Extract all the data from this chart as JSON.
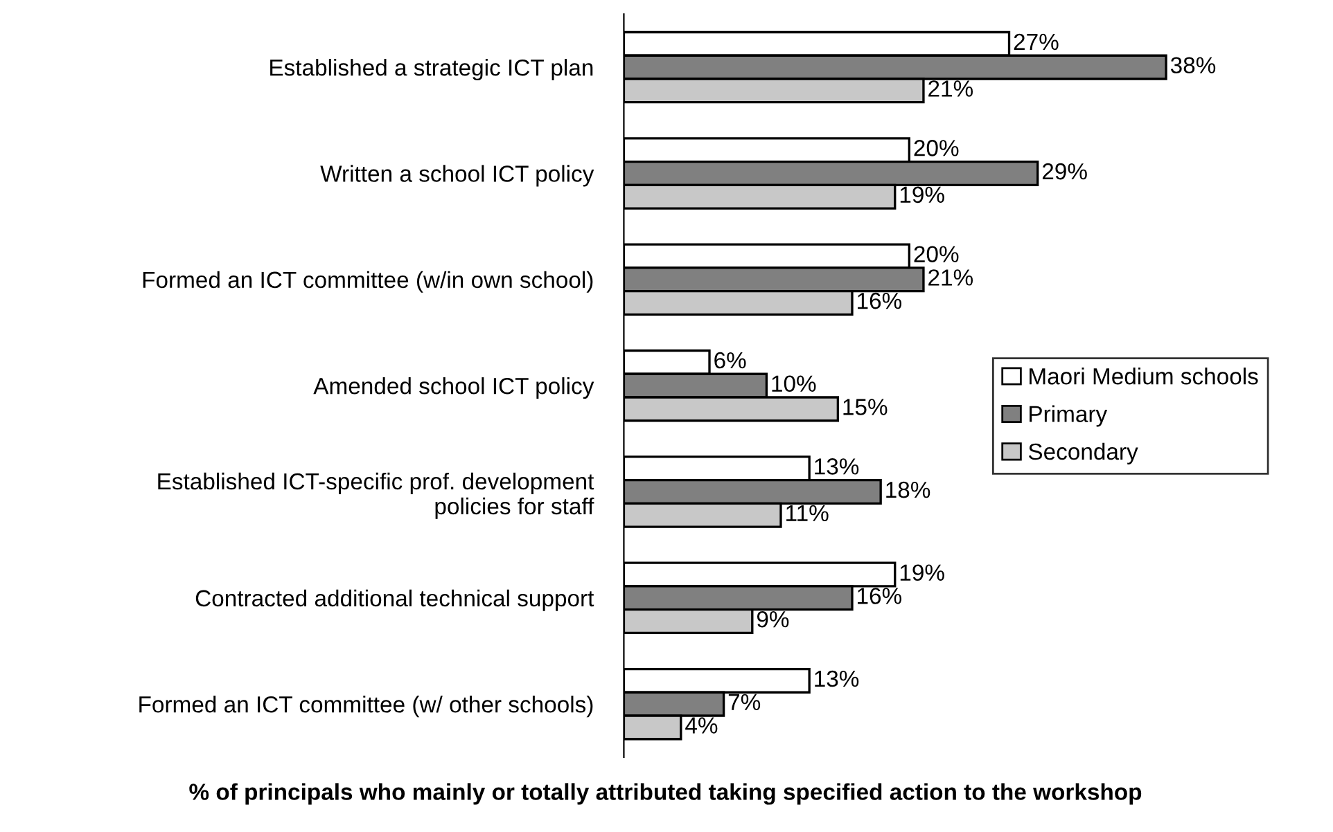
{
  "chart_data": {
    "type": "bar",
    "orientation": "horizontal",
    "xlabel": "% of principals who mainly or totally attributed taking specified action to the workshop",
    "categories": [
      "Established a strategic ICT plan",
      "Written a school ICT policy",
      "Formed an ICT committee (w/in own school)",
      "Amended school ICT policy",
      "Established ICT-specific prof. development\npolicies for staff",
      "Contracted additional technical support",
      "Formed an ICT committee (w/ other schools)"
    ],
    "series": [
      {
        "name": "Maori Medium schools",
        "color": "#ffffff",
        "values": [
          27,
          20,
          20,
          6,
          13,
          19,
          13
        ],
        "value_labels": [
          "27%",
          "20%",
          "20%",
          "6%",
          "13%",
          "19%",
          "13%"
        ]
      },
      {
        "name": "Primary",
        "color": "#808080",
        "values": [
          38,
          29,
          21,
          10,
          18,
          16,
          7
        ],
        "value_labels": [
          "38%",
          "29%",
          "21%",
          "10%",
          "18%",
          "16%",
          "7%"
        ]
      },
      {
        "name": "Secondary",
        "color": "#c8c8c8",
        "values": [
          21,
          19,
          16,
          15,
          11,
          9,
          4
        ],
        "value_labels": [
          "21%",
          "19%",
          "16%",
          "15%",
          "11%",
          "9%",
          "4%"
        ]
      }
    ],
    "legend": "right",
    "grid": false,
    "tick_labels": "y"
  }
}
